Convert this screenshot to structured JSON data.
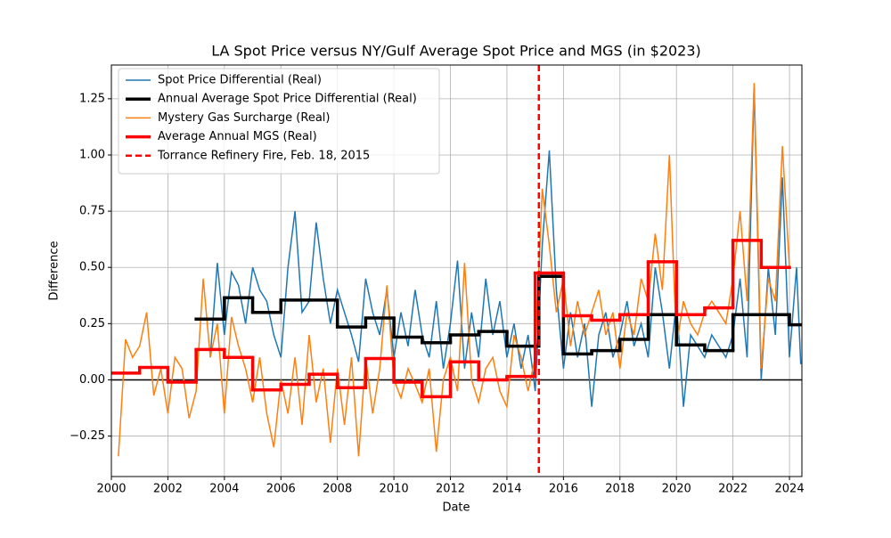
{
  "chart_data": {
    "type": "line",
    "title": "LA Spot Price versus NY/Gulf Average Spot Price  and MGS (in $2023)",
    "x_label": "Date",
    "y_label": "Difference",
    "xlim": [
      2000,
      2024.44
    ],
    "ylim": [
      -0.43,
      1.4
    ],
    "xticks": [
      2000,
      2002,
      2004,
      2006,
      2008,
      2010,
      2012,
      2014,
      2016,
      2018,
      2020,
      2022,
      2024
    ],
    "yticks": [
      {
        "value": -0.25,
        "label": "−0.25"
      },
      {
        "value": 0,
        "label": "0.00"
      },
      {
        "value": 0.25,
        "label": "0.25"
      },
      {
        "value": 0.5,
        "label": "0.50"
      },
      {
        "value": 0.75,
        "label": "0.75"
      },
      {
        "value": 1,
        "label": "1.00"
      },
      {
        "value": 1.25,
        "label": "1.25"
      }
    ],
    "grid": true,
    "legend": "upper left",
    "hline": 0,
    "series": [
      {
        "name": "Spot Price Differential (Real)",
        "color": "#1f77b4",
        "style": "line",
        "width": 1.5,
        "x": [
          2003.5,
          2003.75,
          2004,
          2004.25,
          2004.5,
          2004.75,
          2005,
          2005.25,
          2005.5,
          2005.75,
          2006,
          2006.25,
          2006.5,
          2006.75,
          2007,
          2007.25,
          2007.5,
          2007.75,
          2008,
          2008.25,
          2008.5,
          2008.75,
          2009,
          2009.25,
          2009.5,
          2009.75,
          2010,
          2010.25,
          2010.5,
          2010.75,
          2011,
          2011.25,
          2011.5,
          2011.75,
          2012,
          2012.25,
          2012.5,
          2012.75,
          2013,
          2013.25,
          2013.5,
          2013.75,
          2014,
          2014.25,
          2014.5,
          2014.75,
          2015,
          2015.25,
          2015.5,
          2015.75,
          2016,
          2016.25,
          2016.5,
          2016.75,
          2017,
          2017.25,
          2017.5,
          2017.75,
          2018,
          2018.25,
          2018.5,
          2018.75,
          2019,
          2019.25,
          2019.5,
          2019.75,
          2020,
          2020.25,
          2020.5,
          2020.75,
          2021,
          2021.25,
          2021.5,
          2021.75,
          2022,
          2022.25,
          2022.5,
          2022.75,
          2023,
          2023.25,
          2023.5,
          2023.75,
          2024,
          2024.25,
          2024.4
        ],
        "values": [
          0.1,
          0.52,
          0.2,
          0.48,
          0.42,
          0.25,
          0.5,
          0.4,
          0.35,
          0.2,
          0.1,
          0.5,
          0.75,
          0.3,
          0.35,
          0.7,
          0.45,
          0.25,
          0.4,
          0.3,
          0.2,
          0.08,
          0.45,
          0.3,
          0.2,
          0.4,
          0.1,
          0.3,
          0.15,
          0.4,
          0.2,
          0.1,
          0.35,
          0.05,
          0.25,
          0.53,
          0.05,
          0.3,
          0.1,
          0.45,
          0.2,
          0.35,
          0.1,
          0.25,
          0.05,
          0.2,
          -0.05,
          0.6,
          1.02,
          0.4,
          0.05,
          0.3,
          0.1,
          0.25,
          -0.12,
          0.2,
          0.3,
          0.1,
          0.2,
          0.35,
          0.15,
          0.25,
          0.1,
          0.5,
          0.3,
          0.05,
          0.35,
          -0.12,
          0.2,
          0.15,
          0.1,
          0.2,
          0.15,
          0.1,
          0.2,
          0.45,
          0.1,
          1.3,
          0.0,
          0.5,
          0.2,
          0.9,
          0.1,
          0.5,
          0.07
        ]
      },
      {
        "name": "Annual Average Spot Price Differential (Real)",
        "color": "#000000",
        "style": "step",
        "width": 3.5,
        "x": [
          2003,
          2004,
          2005,
          2006,
          2007,
          2008,
          2009,
          2010,
          2011,
          2012,
          2013,
          2014,
          2015.13,
          2016,
          2017,
          2018,
          2019,
          2020,
          2021,
          2022,
          2023,
          2024
        ],
        "values": [
          0.27,
          0.365,
          0.3,
          0.355,
          0.355,
          0.235,
          0.275,
          0.19,
          0.165,
          0.2,
          0.215,
          0.15,
          0.46,
          0.115,
          0.13,
          0.18,
          0.29,
          0.155,
          0.13,
          0.29,
          0.29,
          0.245
        ]
      },
      {
        "name": "Mystery Gas Surcharge (Real)",
        "color": "#ff7f0e",
        "style": "line",
        "width": 1.5,
        "x": [
          2000.25,
          2000.5,
          2000.75,
          2001,
          2001.25,
          2001.5,
          2001.75,
          2002,
          2002.25,
          2002.5,
          2002.75,
          2003,
          2003.25,
          2003.5,
          2003.75,
          2004,
          2004.25,
          2004.5,
          2004.75,
          2005,
          2005.25,
          2005.5,
          2005.75,
          2006,
          2006.25,
          2006.5,
          2006.75,
          2007,
          2007.25,
          2007.5,
          2007.75,
          2008,
          2008.25,
          2008.5,
          2008.75,
          2009,
          2009.25,
          2009.5,
          2009.75,
          2010,
          2010.25,
          2010.5,
          2010.75,
          2011,
          2011.25,
          2011.5,
          2011.75,
          2012,
          2012.25,
          2012.5,
          2012.75,
          2013,
          2013.25,
          2013.5,
          2013.75,
          2014,
          2014.25,
          2014.5,
          2014.75,
          2015,
          2015.25,
          2015.5,
          2015.75,
          2016,
          2016.25,
          2016.5,
          2016.75,
          2017,
          2017.25,
          2017.5,
          2017.75,
          2018,
          2018.25,
          2018.5,
          2018.75,
          2019,
          2019.25,
          2019.5,
          2019.75,
          2020,
          2020.25,
          2020.5,
          2020.75,
          2021,
          2021.25,
          2021.5,
          2021.75,
          2022,
          2022.25,
          2022.5,
          2022.75,
          2023,
          2023.25,
          2023.5,
          2023.75,
          2024
        ],
        "values": [
          -0.34,
          0.18,
          0.1,
          0.15,
          0.3,
          -0.07,
          0.05,
          -0.15,
          0.1,
          0.05,
          -0.17,
          -0.05,
          0.45,
          0.1,
          0.25,
          -0.15,
          0.28,
          0.15,
          0.05,
          -0.1,
          0.1,
          -0.15,
          -0.3,
          0.0,
          -0.15,
          0.1,
          -0.2,
          0.2,
          -0.1,
          0.05,
          -0.28,
          0.05,
          -0.2,
          0.1,
          -0.34,
          0.1,
          -0.15,
          0.05,
          0.42,
          0.0,
          -0.08,
          0.05,
          -0.02,
          -0.1,
          0.05,
          -0.32,
          0.0,
          0.1,
          -0.05,
          0.52,
          0.0,
          -0.1,
          0.05,
          0.1,
          -0.05,
          -0.12,
          0.2,
          0.1,
          -0.05,
          0.1,
          0.85,
          0.6,
          0.3,
          0.45,
          0.15,
          0.35,
          0.2,
          0.3,
          0.4,
          0.2,
          0.3,
          0.05,
          0.3,
          0.2,
          0.45,
          0.35,
          0.65,
          0.4,
          1.0,
          0.15,
          0.35,
          0.25,
          0.2,
          0.3,
          0.35,
          0.3,
          0.25,
          0.45,
          0.75,
          0.35,
          1.32,
          0.05,
          0.45,
          0.35,
          1.04,
          0.5
        ]
      },
      {
        "name": "Average Annual MGS (Real)",
        "color": "#ff0000",
        "style": "step",
        "width": 3.5,
        "x": [
          2000,
          2001,
          2002,
          2003,
          2004,
          2005,
          2006,
          2007,
          2008,
          2009,
          2010,
          2011,
          2012,
          2013,
          2014,
          2015,
          2016,
          2017,
          2018,
          2019,
          2020,
          2021,
          2022,
          2023
        ],
        "values": [
          0.03,
          0.055,
          -0.01,
          0.135,
          0.1,
          -0.045,
          -0.02,
          0.025,
          -0.035,
          0.095,
          -0.01,
          -0.075,
          0.08,
          0.0,
          0.015,
          0.475,
          0.285,
          0.265,
          0.29,
          0.525,
          0.29,
          0.32,
          0.62,
          0.5
        ]
      },
      {
        "name": "Torrance Refinery Fire, Feb. 18, 2015",
        "color": "#ff0000",
        "style": "vline",
        "width": 2.5,
        "x": 2015.13
      }
    ]
  }
}
